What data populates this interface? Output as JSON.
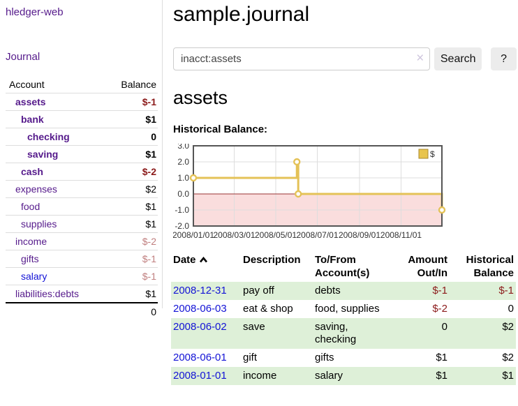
{
  "app": {
    "title": "hledger-web"
  },
  "sidebar": {
    "nav": {
      "journal": "Journal"
    },
    "accounts_table": {
      "headers": {
        "account": "Account",
        "balance": "Balance"
      },
      "rows": [
        {
          "name": "assets",
          "balance": "$-1"
        },
        {
          "name": "bank",
          "balance": "$1"
        },
        {
          "name": "checking",
          "balance": "0"
        },
        {
          "name": "saving",
          "balance": "$1"
        },
        {
          "name": "cash",
          "balance": "$-2"
        },
        {
          "name": "expenses",
          "balance": "$2"
        },
        {
          "name": "food",
          "balance": "$1"
        },
        {
          "name": "supplies",
          "balance": "$1"
        },
        {
          "name": "income",
          "balance": "$-2"
        },
        {
          "name": "gifts",
          "balance": "$-1"
        },
        {
          "name": "salary",
          "balance": "$-1"
        },
        {
          "name": "liabilities:debts",
          "balance": "$1"
        }
      ],
      "total": "0"
    }
  },
  "main": {
    "title": "sample.journal",
    "search": {
      "value": "inacct:assets",
      "clear": "×",
      "button": "Search",
      "help": "?"
    },
    "heading": "assets",
    "chart_title": "Historical Balance:"
  },
  "chart_data": {
    "type": "line",
    "step": true,
    "title": "Historical Balance",
    "series": [
      {
        "name": "$",
        "points": [
          [
            "2008-01-01",
            1
          ],
          [
            "2008-06-01",
            2
          ],
          [
            "2008-06-03",
            0
          ],
          [
            "2008-12-31",
            -1
          ]
        ]
      }
    ],
    "x_range": [
      "2008-01-01",
      "2008-12-31"
    ],
    "x_ticks": [
      "2008/01/01",
      "2008/03/01",
      "2008/05/01",
      "2008/07/01",
      "2008/09/01",
      "2008/11/01"
    ],
    "y_ticks": [
      "3.0",
      "2.0",
      "1.0",
      "0.0",
      "-1.0",
      "-2.0"
    ],
    "ylim": [
      -2,
      3
    ],
    "legend": {
      "label": "$",
      "position": "top-right"
    },
    "grid": true,
    "colors": {
      "line": "#e4c257",
      "marker_fill": "#ffffff",
      "negative_fill": "#fadddd",
      "zero_line": "#993333",
      "grid": "#dddddd",
      "border": "#555555",
      "legend_fill": "#e8c44d",
      "legend_border": "#a8892f",
      "label": "#333333"
    }
  },
  "register": {
    "headers": {
      "date": "Date",
      "description": "Description",
      "accounts_l1": "To/From",
      "accounts_l2": "Account(s)",
      "amount_l1": "Amount",
      "amount_l2": "Out/In",
      "balance_l1": "Historical",
      "balance_l2": "Balance"
    },
    "rows": [
      {
        "date": "2008-12-31",
        "description": "pay off",
        "accounts": "debts",
        "amount": "$-1",
        "balance": "$-1"
      },
      {
        "date": "2008-06-03",
        "description": "eat & shop",
        "accounts": "food, supplies",
        "amount": "$-2",
        "balance": "0"
      },
      {
        "date": "2008-06-02",
        "description": "save",
        "accounts": "saving, checking",
        "amount": "0",
        "balance": "$2"
      },
      {
        "date": "2008-06-01",
        "description": "gift",
        "accounts": "gifts",
        "amount": "$1",
        "balance": "$2"
      },
      {
        "date": "2008-01-01",
        "description": "income",
        "accounts": "salary",
        "amount": "$1",
        "balance": "$1"
      }
    ]
  },
  "colors": {
    "link_purple": "#551a8b",
    "link_blue": "#1313d6",
    "negative_strong": "#8b1a1a",
    "negative_soft": "#c07f7f",
    "row_stripe_green": "#def0d8",
    "button_gray": "#ececec"
  }
}
